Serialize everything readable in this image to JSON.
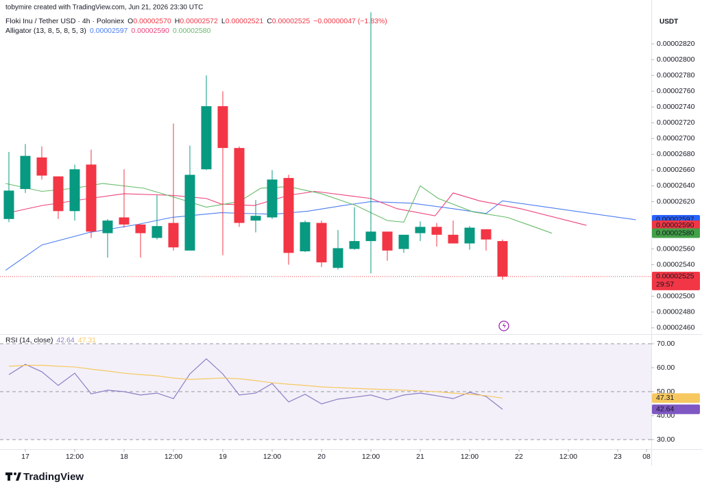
{
  "header": {
    "credit": "tobymire created with TradingView.com, Jun 21, 2026 23:30 UTC",
    "symbol": "Floki Inu / Tether USD · 4h · Poloniex",
    "value_color": "#f23645",
    "ohlc": [
      {
        "key": "O",
        "value": "0.00002570"
      },
      {
        "key": "H",
        "value": "0.00002572"
      },
      {
        "key": "L",
        "value": "0.00002521"
      },
      {
        "key": "C",
        "value": "0.00002525"
      }
    ],
    "change": "−0.00000047 (−1.83%)",
    "indicator": "Alligator (13, 8, 5, 8, 5, 3)",
    "indicator_values": [
      "0.00002597",
      "0.00002590",
      "0.00002580"
    ]
  },
  "chart_data": [
    {
      "type": "candlestick",
      "currency": "USDT",
      "up_color": "#089981",
      "down_color": "#f23645",
      "x": [
        0,
        1,
        2,
        3,
        4,
        5,
        6,
        7,
        8,
        9,
        10,
        11,
        12,
        13,
        14,
        15,
        16,
        17,
        18,
        19,
        20,
        21,
        22,
        23,
        24,
        25,
        26,
        27,
        28,
        29,
        30
      ],
      "open": [
        2.598e-05,
        2.636e-05,
        2.676e-05,
        2.652e-05,
        2.608e-05,
        2.667e-05,
        2.58e-05,
        2.6e-05,
        2.591e-05,
        2.574e-05,
        2.593e-05,
        2.558e-05,
        2.661e-05,
        2.741e-05,
        2.688e-05,
        2.596e-05,
        2.6e-05,
        2.65e-05,
        2.557e-05,
        2.593e-05,
        2.536e-05,
        2.56e-05,
        2.57e-05,
        2.582e-05,
        2.56e-05,
        2.58e-05,
        2.588e-05,
        2.578e-05,
        2.567e-05,
        2.585e-05,
        2.57e-05
      ],
      "high": [
        2.683e-05,
        2.693e-05,
        2.69e-05,
        2.652e-05,
        2.667e-05,
        2.686e-05,
        2.598e-05,
        2.661e-05,
        2.591e-05,
        2.628e-05,
        2.719e-05,
        2.691e-05,
        2.78e-05,
        2.76e-05,
        2.69e-05,
        2.622e-05,
        2.66e-05,
        2.654e-05,
        2.596e-05,
        2.596e-05,
        2.584e-05,
        2.613e-05,
        2.86e-05,
        2.582e-05,
        2.578e-05,
        2.595e-05,
        2.593e-05,
        2.596e-05,
        2.589e-05,
        2.585e-05,
        2.572e-05
      ],
      "low": [
        2.594e-05,
        2.631e-05,
        2.648e-05,
        2.598e-05,
        2.596e-05,
        2.574e-05,
        2.549e-05,
        2.587e-05,
        2.549e-05,
        2.572e-05,
        2.558e-05,
        2.558e-05,
        2.66e-05,
        2.552e-05,
        2.588e-05,
        2.581e-05,
        2.598e-05,
        2.54e-05,
        2.556e-05,
        2.537e-05,
        2.534e-05,
        2.559e-05,
        2.529e-05,
        2.545e-05,
        2.555e-05,
        2.57e-05,
        2.563e-05,
        2.567e-05,
        2.559e-05,
        2.558e-05,
        2.521e-05
      ],
      "close": [
        2.634e-05,
        2.678e-05,
        2.653e-05,
        2.608e-05,
        2.661e-05,
        2.582e-05,
        2.596e-05,
        2.591e-05,
        2.58e-05,
        2.589e-05,
        2.562e-05,
        2.654e-05,
        2.741e-05,
        2.688e-05,
        2.593e-05,
        2.602e-05,
        2.648e-05,
        2.555e-05,
        2.594e-05,
        2.543e-05,
        2.561e-05,
        2.57e-05,
        2.582e-05,
        2.558e-05,
        2.578e-05,
        2.588e-05,
        2.578e-05,
        2.567e-05,
        2.587e-05,
        2.572e-05,
        2.525e-05
      ],
      "series": [
        {
          "color": "#4a7cf0",
          "x": [
            -0.2,
            2,
            4.9,
            7.8,
            9.9,
            12.9,
            16.1,
            18.2,
            20.3,
            22,
            24.5,
            27,
            29,
            30,
            32,
            38.1
          ],
          "values": [
            2.533e-05,
            2.565e-05,
            2.581e-05,
            2.591e-05,
            2.6e-05,
            2.606e-05,
            2.604e-05,
            2.608e-05,
            2.615e-05,
            2.62e-05,
            2.618e-05,
            2.611e-05,
            2.605e-05,
            2.621e-05,
            2.615e-05,
            2.597e-05
          ]
        },
        {
          "color": "#ec407a",
          "x": [
            -0.2,
            2,
            4.9,
            7,
            9.9,
            12,
            12.9,
            14.9,
            17,
            18.6,
            22,
            23.6,
            25.9,
            27,
            28.6,
            31.1,
            35.1
          ],
          "values": [
            2.605e-05,
            2.615e-05,
            2.624e-05,
            2.63e-05,
            2.628e-05,
            2.624e-05,
            2.617e-05,
            2.615e-05,
            2.628e-05,
            2.633e-05,
            2.624e-05,
            2.611e-05,
            2.602e-05,
            2.631e-05,
            2.621e-05,
            2.611e-05,
            2.59e-05
          ]
        },
        {
          "color": "#66bb6a",
          "x": [
            -0.2,
            2,
            4,
            5.7,
            8.2,
            10.3,
            12,
            14,
            15.3,
            17,
            19,
            21.1,
            23,
            24,
            25,
            26.1,
            28.2,
            30.3,
            33
          ],
          "values": [
            2.643e-05,
            2.633e-05,
            2.637e-05,
            2.643e-05,
            2.637e-05,
            2.624e-05,
            2.613e-05,
            2.62e-05,
            2.637e-05,
            2.639e-05,
            2.63e-05,
            2.615e-05,
            2.596e-05,
            2.594e-05,
            2.64e-05,
            2.624e-05,
            2.607e-05,
            2.6e-05,
            2.58e-05
          ]
        }
      ],
      "xlim": [
        -0.54,
        39.04
      ],
      "xticks": [
        {
          "value": 1,
          "label": "17"
        },
        {
          "value": 4,
          "label": "12:00"
        },
        {
          "value": 7,
          "label": "18"
        },
        {
          "value": 10,
          "label": "12:00"
        },
        {
          "value": 13,
          "label": "19"
        },
        {
          "value": 16,
          "label": "12:00"
        },
        {
          "value": 19,
          "label": "20"
        },
        {
          "value": 22,
          "label": "12:00"
        },
        {
          "value": 25,
          "label": "21"
        },
        {
          "value": 28,
          "label": "12:00"
        },
        {
          "value": 31,
          "label": "22"
        },
        {
          "value": 34,
          "label": "12:00"
        },
        {
          "value": 37,
          "label": "23"
        },
        {
          "value": 38.75,
          "label": "08"
        }
      ],
      "ylim": [
        2.452e-05,
        2.86e-05
      ],
      "yticks": [
        {
          "value": 2.82e-05,
          "label": "0.00002820"
        },
        {
          "value": 2.8e-05,
          "label": "0.00002800"
        },
        {
          "value": 2.78e-05,
          "label": "0.00002780"
        },
        {
          "value": 2.76e-05,
          "label": "0.00002760"
        },
        {
          "value": 2.74e-05,
          "label": "0.00002740"
        },
        {
          "value": 2.72e-05,
          "label": "0.00002720"
        },
        {
          "value": 2.7e-05,
          "label": "0.00002700"
        },
        {
          "value": 2.68e-05,
          "label": "0.00002680"
        },
        {
          "value": 2.66e-05,
          "label": "0.00002660"
        },
        {
          "value": 2.64e-05,
          "label": "0.00002640"
        },
        {
          "value": 2.62e-05,
          "label": "0.00002620"
        },
        {
          "value": 2.56e-05,
          "label": "0.00002560"
        },
        {
          "value": 2.54e-05,
          "label": "0.00002540"
        },
        {
          "value": 2.5e-05,
          "label": "0.00002500"
        },
        {
          "value": 2.48e-05,
          "label": "0.00002480"
        },
        {
          "value": 2.46e-05,
          "label": "0.00002460"
        }
      ],
      "grid": false,
      "tags": [
        {
          "value": 2.597e-05,
          "label": "0.00002597",
          "color": "#2962ff"
        },
        {
          "value": 2.59e-05,
          "label": "0.00002590",
          "color": "#f23645"
        },
        {
          "value": 2.58e-05,
          "label": "0.00002580",
          "color": "#43a047"
        },
        {
          "value": 2.525e-05,
          "label": "0.00002525",
          "sublabel": "29:57",
          "color": "#f23645",
          "dotted_line": true
        }
      ]
    },
    {
      "type": "line",
      "title": "RSI (14, close)",
      "legend_values": [
        "42.64",
        "47.31"
      ],
      "x": [
        0,
        1,
        2,
        3,
        4,
        5,
        6,
        7,
        8,
        9,
        10,
        11,
        12,
        13,
        14,
        15,
        16,
        17,
        18,
        19,
        20,
        21,
        22,
        23,
        24,
        25,
        26,
        27,
        28,
        29,
        30
      ],
      "series": [
        {
          "color": "#8e7cc3",
          "values": [
            57.1,
            61.4,
            58.3,
            52.6,
            57.7,
            49.1,
            50.6,
            50,
            48.6,
            49.4,
            47.1,
            57.4,
            63.7,
            57.4,
            48.6,
            49.4,
            53.4,
            45.7,
            48.9,
            44.9,
            46.9,
            47.7,
            48.6,
            46.6,
            48.6,
            49.4,
            48.3,
            47.1,
            49.7,
            48,
            42.64
          ]
        },
        {
          "color": "#f6c85f",
          "values": [
            60.6,
            61,
            61,
            60.6,
            60.3,
            59.4,
            58.6,
            57.7,
            57.1,
            56.6,
            55.7,
            55.1,
            55.4,
            55.7,
            55.4,
            54.6,
            53.7,
            53.1,
            52.6,
            52,
            51.7,
            51.4,
            51.1,
            50.9,
            50.6,
            50.3,
            50,
            49.4,
            48.9,
            48.3,
            47.31
          ]
        }
      ],
      "band": [
        30,
        70
      ],
      "levels": [
        70,
        50,
        30
      ],
      "ylim": [
        26,
        74
      ],
      "yticks": [
        {
          "value": 70,
          "label": "70.00"
        },
        {
          "value": 60,
          "label": "60.00"
        },
        {
          "value": 50,
          "label": "50.00"
        },
        {
          "value": 40,
          "label": "40.00"
        },
        {
          "value": 30,
          "label": "30.00"
        }
      ],
      "tags": [
        {
          "value": 47.31,
          "label": "47.31",
          "color": "#f6c85f",
          "text_color": "#131722"
        },
        {
          "value": 42.64,
          "label": "42.64",
          "color": "#7e57c2"
        }
      ]
    }
  ],
  "footer": {
    "brand": "TradingView"
  }
}
